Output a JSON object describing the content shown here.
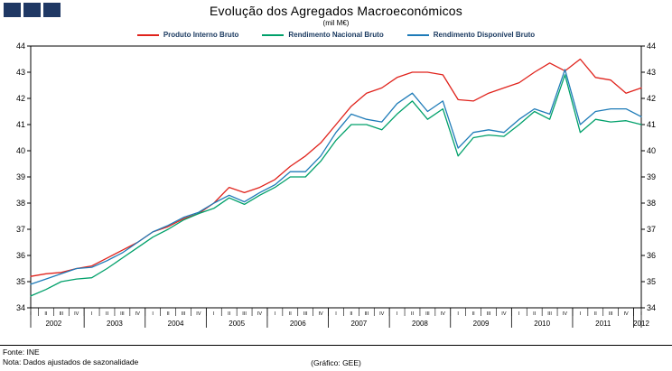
{
  "header": {
    "title": "Evolução dos Agregados Macroeconómicos",
    "subtitle": "(mil M€)"
  },
  "logo": {
    "square_color": "#1f3864",
    "square_count": 3
  },
  "chart_data": {
    "type": "line",
    "title": "Evolução dos Agregados Macroeconómicos",
    "subtitle": "(mil M€)",
    "ylim": [
      34,
      44
    ],
    "yticks": [
      34,
      35,
      36,
      37,
      38,
      39,
      40,
      41,
      42,
      43,
      44
    ],
    "grid": false,
    "legend_position": "top",
    "quarters": [
      "I",
      "II",
      "III",
      "IV",
      "I",
      "II",
      "III",
      "IV",
      "I",
      "II",
      "III",
      "IV",
      "I",
      "II",
      "III",
      "IV",
      "I",
      "II",
      "III",
      "IV",
      "I",
      "II",
      "III",
      "IV",
      "I",
      "II",
      "III",
      "IV",
      "I",
      "II",
      "III",
      "IV",
      "I",
      "II",
      "III",
      "IV",
      "I",
      "II",
      "III",
      "IV",
      "I"
    ],
    "year_groups": [
      {
        "year": "2002",
        "count": 4
      },
      {
        "year": "2003",
        "count": 4
      },
      {
        "year": "2004",
        "count": 4
      },
      {
        "year": "2005",
        "count": 4
      },
      {
        "year": "2006",
        "count": 4
      },
      {
        "year": "2007",
        "count": 4
      },
      {
        "year": "2008",
        "count": 4
      },
      {
        "year": "2009",
        "count": 4
      },
      {
        "year": "2010",
        "count": 4
      },
      {
        "year": "2011",
        "count": 4
      },
      {
        "year": "2012",
        "count": 1
      }
    ],
    "series": [
      {
        "name": "Produto Interno Bruto",
        "color": "#e0231c",
        "values": [
          35.2,
          35.3,
          35.35,
          35.5,
          35.6,
          35.9,
          36.2,
          36.5,
          36.9,
          37.1,
          37.4,
          37.6,
          38.0,
          38.6,
          38.4,
          38.6,
          38.9,
          39.4,
          39.8,
          40.3,
          41.0,
          41.7,
          42.2,
          42.4,
          42.8,
          43.0,
          43.0,
          42.9,
          41.95,
          41.9,
          42.2,
          42.4,
          42.6,
          43.0,
          43.35,
          43.05,
          43.5,
          42.8,
          42.7,
          42.2,
          42.4
        ]
      },
      {
        "name": "Rendimento Nacional Bruto",
        "color": "#00a06a",
        "values": [
          34.45,
          34.7,
          35.0,
          35.1,
          35.15,
          35.5,
          35.9,
          36.3,
          36.7,
          37.0,
          37.35,
          37.6,
          37.8,
          38.2,
          37.95,
          38.3,
          38.6,
          39.0,
          39.0,
          39.6,
          40.4,
          41.0,
          41.0,
          40.8,
          41.4,
          41.9,
          41.2,
          41.6,
          39.8,
          40.5,
          40.6,
          40.55,
          41.0,
          41.5,
          41.2,
          42.9,
          40.7,
          41.2,
          41.1,
          41.15,
          41.0
        ]
      },
      {
        "name": "Rendimento Disponível Bruto",
        "color": "#1e7bb8",
        "values": [
          34.9,
          35.1,
          35.3,
          35.5,
          35.55,
          35.8,
          36.1,
          36.5,
          36.9,
          37.15,
          37.45,
          37.65,
          38.0,
          38.3,
          38.05,
          38.4,
          38.7,
          39.2,
          39.2,
          39.8,
          40.7,
          41.4,
          41.2,
          41.1,
          41.8,
          42.2,
          41.5,
          41.9,
          40.1,
          40.7,
          40.8,
          40.7,
          41.2,
          41.6,
          41.4,
          43.1,
          41.0,
          41.5,
          41.6,
          41.6,
          41.3
        ]
      }
    ]
  },
  "footer": {
    "source": "Fonte: INE",
    "note": "Nota: Dados ajustados de sazonalidade",
    "credit": "(Gráfico: GEE)"
  }
}
